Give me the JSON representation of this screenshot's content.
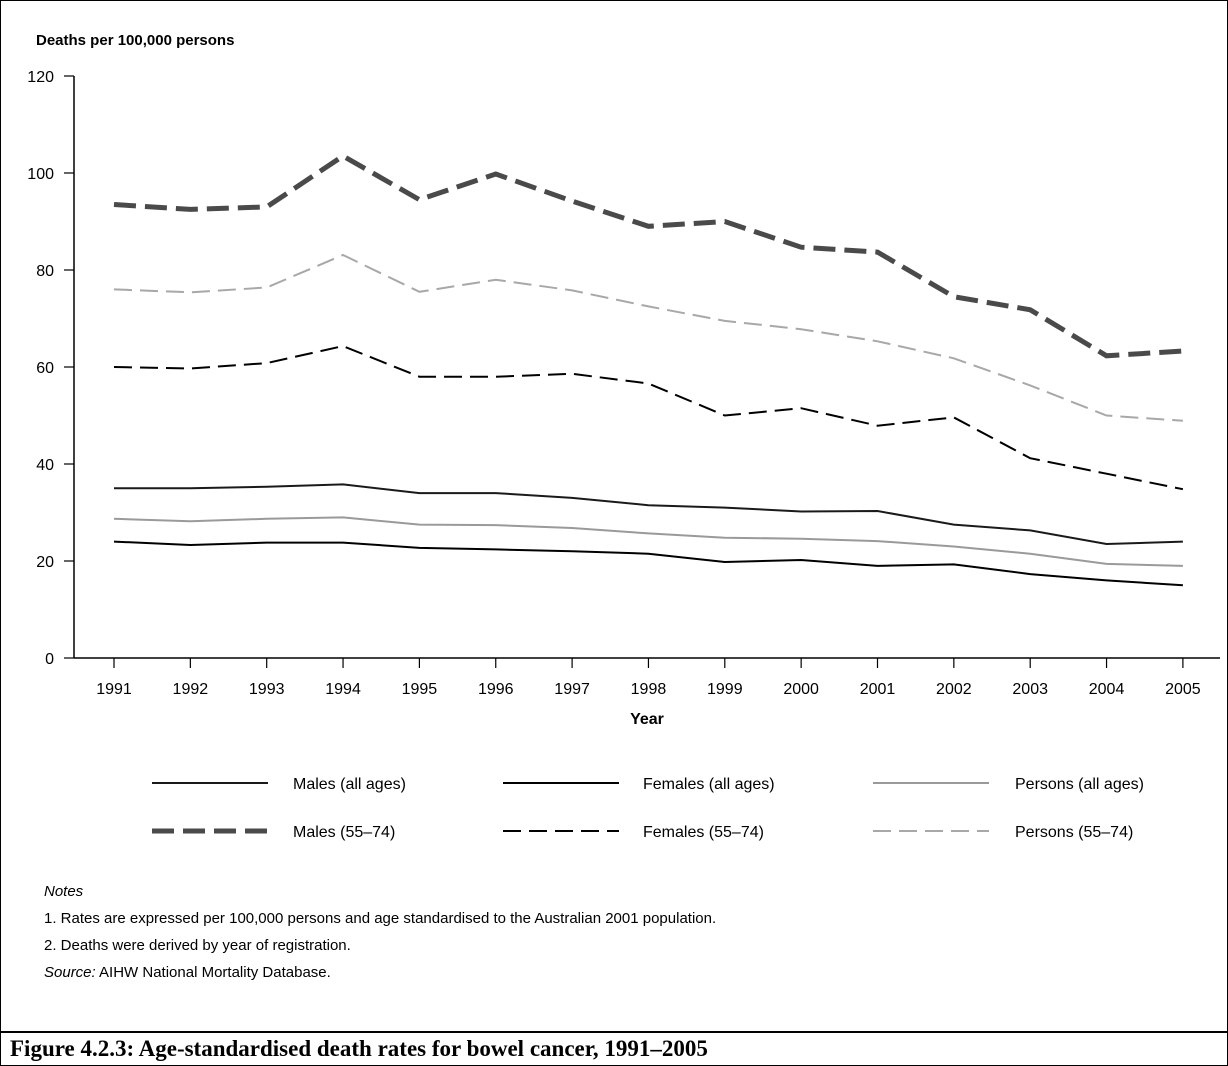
{
  "chart_data": {
    "type": "line",
    "ylabel": "Deaths per 100,000 persons",
    "xlabel": "Year",
    "ylim": [
      0,
      120
    ],
    "yticks": [
      0,
      20,
      40,
      60,
      80,
      100,
      120
    ],
    "categories": [
      "1991",
      "1992",
      "1993",
      "1994",
      "1995",
      "1996",
      "1997",
      "1998",
      "1999",
      "2000",
      "2001",
      "2002",
      "2003",
      "2004",
      "2005"
    ],
    "grid": false,
    "legend_position": "bottom",
    "series": [
      {
        "name": "Males (all ages)",
        "color": "#1a1a1a",
        "style": "solid",
        "values": [
          35,
          35,
          35.3,
          35.8,
          34,
          34,
          33,
          31.5,
          31,
          30.2,
          30.3,
          27.5,
          26.3,
          23.5,
          24
        ]
      },
      {
        "name": "Females (all ages)",
        "color": "#000000",
        "style": "solid",
        "values": [
          24,
          23.3,
          23.8,
          23.8,
          22.7,
          22.4,
          22,
          21.5,
          19.8,
          20.2,
          19,
          19.3,
          17.3,
          16,
          15
        ]
      },
      {
        "name": "Persons (all ages)",
        "color": "#9a9a9a",
        "style": "solid",
        "values": [
          28.7,
          28.2,
          28.7,
          29,
          27.5,
          27.4,
          26.8,
          25.7,
          24.8,
          24.6,
          24.1,
          23,
          21.5,
          19.4,
          19
        ]
      },
      {
        "name": "Males (55–74)",
        "color": "#4a4a4a",
        "style": "heavy-dash",
        "values": [
          93.5,
          92.5,
          93,
          103.5,
          94.5,
          99.8,
          94.2,
          89,
          90,
          84.7,
          83.7,
          74.5,
          71.8,
          62.3,
          63.3
        ]
      },
      {
        "name": "Females (55–74)",
        "color": "#000000",
        "style": "dash",
        "values": [
          60,
          59.7,
          60.8,
          64.3,
          58,
          58,
          58.6,
          56.6,
          50,
          51.5,
          47.9,
          49.6,
          41.2,
          38,
          34.8
        ]
      },
      {
        "name": "Persons (55–74)",
        "color": "#a8a8a8",
        "style": "dash",
        "values": [
          76,
          75.4,
          76.4,
          83.1,
          75.5,
          78,
          75.8,
          72.5,
          69.5,
          67.8,
          65.3,
          61.8,
          56.2,
          50,
          48.9
        ]
      }
    ]
  },
  "notes": {
    "heading": "Notes",
    "items": [
      "1. Rates are expressed per 100,000 persons and age standardised to the Australian 2001 population.",
      "2. Deaths were derived by year of registration."
    ],
    "source_label": "Source:",
    "source_text": " AIHW National Mortality Database."
  },
  "caption": "Figure 4.2.3: Age-standardised death rates for bowel cancer, 1991–2005"
}
